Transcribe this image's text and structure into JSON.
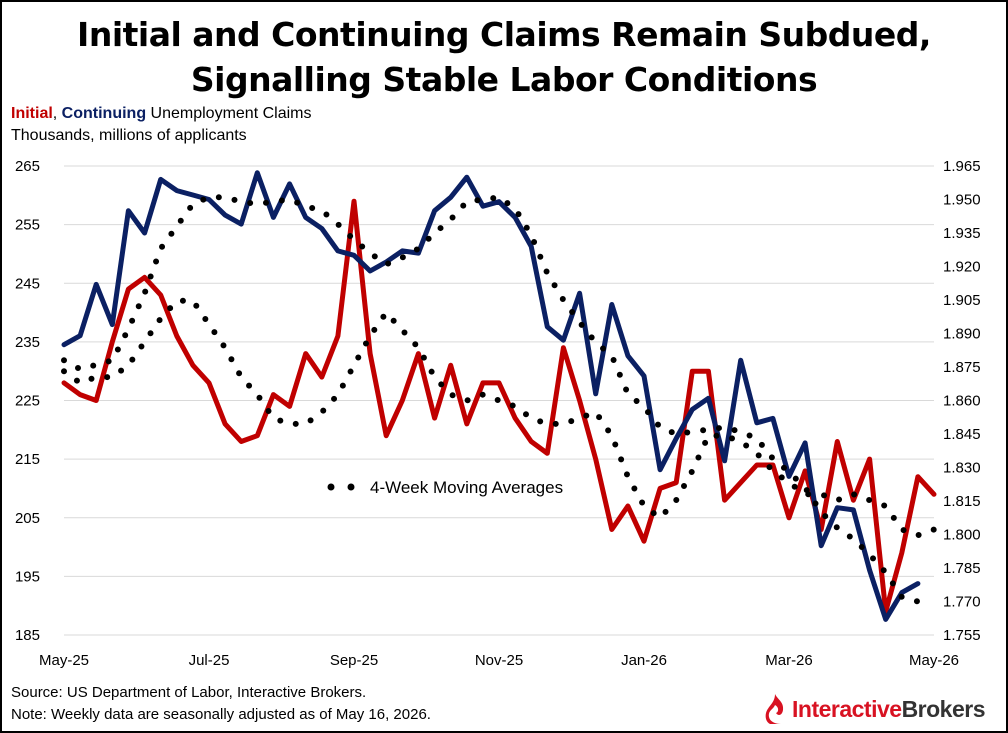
{
  "title_line1": "Initial and Continuing Claims Remain Subdued,",
  "title_line2": "Signalling Stable Labor Conditions",
  "subtitle_initial": "Initial",
  "subtitle_sep": ", ",
  "subtitle_continuing": "Continuing",
  "subtitle_rest": " Unemployment  Claims",
  "units": "Thousands, millions of applicants",
  "source": "Source: US Department of Labor, Interactive Brokers.",
  "note": "Note: Weekly data are seasonally adjusted as of May 16, 2026.",
  "logo": {
    "part1": "Interactive",
    "part2": "Brokers"
  },
  "colors": {
    "initial": "#c00000",
    "continuing": "#0b2063",
    "moving_average": "#000000",
    "grid": "#d9d9d9"
  },
  "chart_data": {
    "type": "line",
    "x_tick_labels": [
      "May-25",
      "Jul-25",
      "Sep-25",
      "Nov-25",
      "Jan-26",
      "Mar-26",
      "May-26"
    ],
    "x_tick_index": [
      0,
      9,
      18,
      27,
      36,
      45,
      54
    ],
    "y_left": {
      "ticks": [
        185,
        195,
        205,
        215,
        225,
        235,
        245,
        255,
        265
      ],
      "ylim": [
        185,
        265
      ]
    },
    "y_right": {
      "ticks": [
        "1.755",
        "1.770",
        "1.785",
        "1.800",
        "1.815",
        "1.830",
        "1.845",
        "1.860",
        "1.875",
        "1.890",
        "1.905",
        "1.920",
        "1.935",
        "1.950",
        "1.965"
      ],
      "ylim": [
        1.755,
        1.965
      ]
    },
    "annotation": "4-Week Moving Averages",
    "grid": "horizontal",
    "series": [
      {
        "name": "Initial",
        "axis": "left",
        "values": [
          228,
          226,
          225,
          235,
          244,
          246,
          243,
          236,
          231,
          228,
          221,
          218,
          219,
          226,
          224,
          233,
          229,
          236,
          259,
          233,
          219,
          225,
          233,
          222,
          231,
          221,
          228,
          228,
          222,
          218,
          216,
          234,
          225,
          215,
          203,
          207,
          201,
          210,
          211,
          230,
          230,
          208,
          211,
          214,
          214,
          205,
          213,
          203,
          218,
          208,
          215,
          189,
          199,
          212,
          209
        ]
      },
      {
        "name": "Continuing",
        "axis": "right",
        "values": [
          1.885,
          1.889,
          1.912,
          1.894,
          1.945,
          1.935,
          1.959,
          1.954,
          1.952,
          1.95,
          1.943,
          1.939,
          1.962,
          1.942,
          1.957,
          1.942,
          1.937,
          1.927,
          1.925,
          1.918,
          1.922,
          1.927,
          1.926,
          1.945,
          1.951,
          1.96,
          1.947,
          1.949,
          1.942,
          1.929,
          1.893,
          1.887,
          1.908,
          1.863,
          1.903,
          1.88,
          1.871,
          1.829,
          1.843,
          1.856,
          1.861,
          1.833,
          1.878,
          1.85,
          1.852,
          1.826,
          1.841,
          1.795,
          1.812,
          1.811,
          1.784,
          1.762,
          1.774,
          1.778
        ]
      },
      {
        "name": "Initial 4-week MA",
        "axis": "left",
        "values": [
          230,
          228,
          229,
          229,
          231,
          235,
          239,
          242,
          242,
          238,
          234,
          229,
          226,
          222,
          221,
          221,
          223,
          226,
          231,
          236,
          240,
          237,
          234,
          229,
          226,
          225,
          226,
          225,
          224,
          222,
          221,
          221,
          222,
          223,
          219,
          212,
          207,
          205,
          208,
          213,
          219,
          219,
          218,
          216,
          213,
          211,
          209,
          209,
          208,
          209,
          208,
          207,
          203,
          202,
          203
        ]
      },
      {
        "name": "Continuing 4-week MA",
        "axis": "right",
        "values": [
          1.878,
          1.874,
          1.876,
          1.878,
          1.892,
          1.908,
          1.928,
          1.938,
          1.948,
          1.951,
          1.951,
          1.949,
          1.948,
          1.949,
          1.95,
          1.947,
          1.945,
          1.939,
          1.932,
          1.926,
          1.921,
          1.924,
          1.928,
          1.935,
          1.941,
          1.949,
          1.95,
          1.951,
          1.946,
          1.934,
          1.917,
          1.905,
          1.895,
          1.886,
          1.88,
          1.863,
          1.857,
          1.848,
          1.845,
          1.846,
          1.847,
          1.848,
          1.846,
          1.843,
          1.834,
          1.828,
          1.821,
          1.81,
          1.803,
          1.798,
          1.791,
          1.783,
          1.772,
          1.77
        ]
      }
    ]
  }
}
